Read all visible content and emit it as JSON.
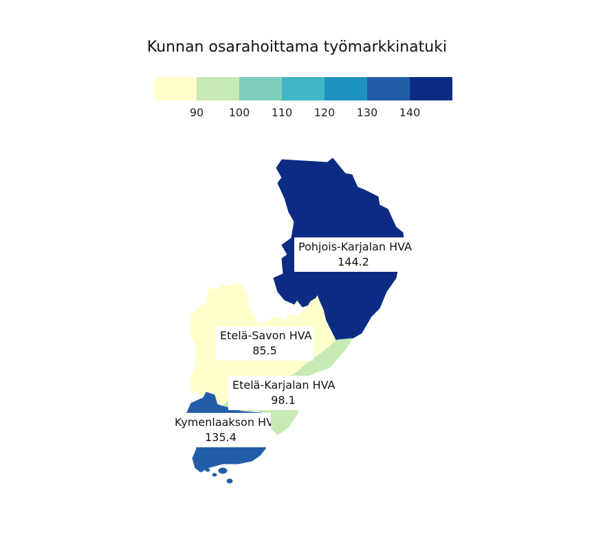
{
  "title": "Kunnan osarahoittama työmarkkinatuki",
  "legend": {
    "colors": [
      "#ffffcc",
      "#c7e9b4",
      "#7fcdbb",
      "#41b6c4",
      "#1d91c0",
      "#225ea8",
      "#0c2c84"
    ],
    "ticks": [
      "90",
      "100",
      "110",
      "120",
      "130",
      "140"
    ]
  },
  "regions": [
    {
      "name": "Pohjois-Karjalan HVA",
      "value": "144.2",
      "color": "#0c2c84"
    },
    {
      "name": "Etelä-Savon HVA",
      "value": "85.5",
      "color": "#ffffcc"
    },
    {
      "name": "Etelä-Karjalan HVA",
      "value": "98.1",
      "color": "#c7e9b4"
    },
    {
      "name": "Kymenlaakson HVA",
      "value": "135.4",
      "color": "#225ea8"
    }
  ]
}
